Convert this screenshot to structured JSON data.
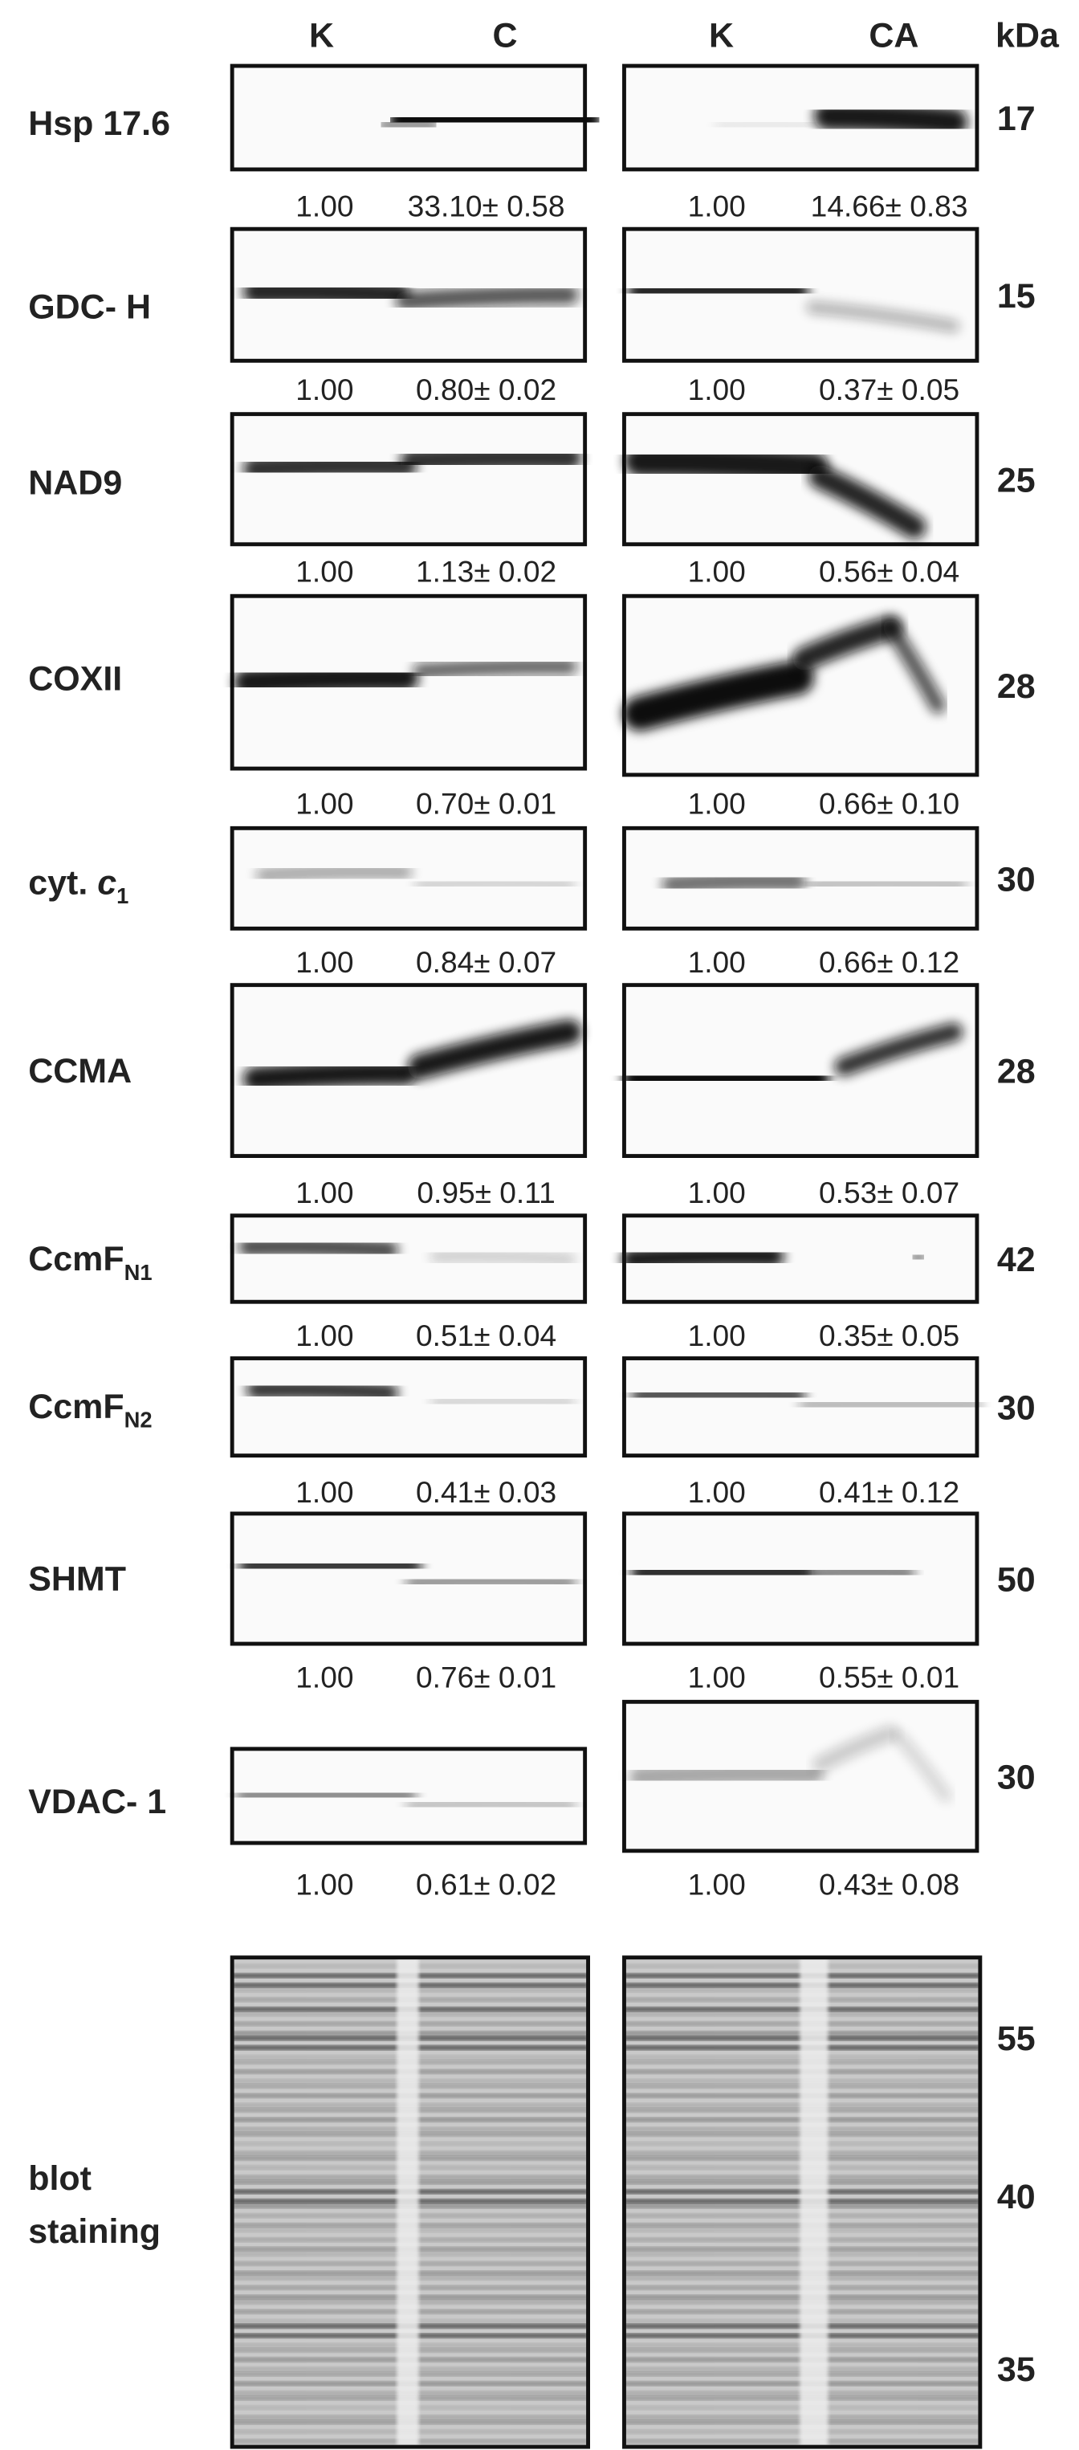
{
  "header": {
    "lanes": [
      "K",
      "C",
      "K",
      "CA"
    ],
    "unit": "kDa"
  },
  "rows": [
    {
      "label": "Hsp 17.6",
      "kda": "17",
      "quant": [
        "1.00",
        "33.10± 0.58",
        "1.00",
        "14.66± 0.83"
      ]
    },
    {
      "label": "GDC- H",
      "kda": "15",
      "quant": [
        "1.00",
        "0.80± 0.02",
        "1.00",
        "0.37± 0.05"
      ]
    },
    {
      "label": "NAD9",
      "kda": "25",
      "quant": [
        "1.00",
        "1.13± 0.02",
        "1.00",
        "0.56± 0.04"
      ]
    },
    {
      "label": "COXII",
      "kda": "28",
      "quant": [
        "1.00",
        "0.70± 0.01",
        "1.00",
        "0.66± 0.10"
      ]
    },
    {
      "label": "cyt. ",
      "label_italic": "c",
      "label_sub": "1",
      "kda": "30",
      "quant": [
        "1.00",
        "0.84± 0.07",
        "1.00",
        "0.66± 0.12"
      ]
    },
    {
      "label": "CCMA",
      "kda": "28",
      "quant": [
        "1.00",
        "0.95± 0.11",
        "1.00",
        "0.53± 0.07"
      ]
    },
    {
      "label": "CcmF",
      "label_sub": "N1",
      "kda": "42",
      "quant": [
        "1.00",
        "0.51± 0.04",
        "1.00",
        "0.35± 0.05"
      ]
    },
    {
      "label": "CcmF",
      "label_sub": "N2",
      "kda": "30",
      "quant": [
        "1.00",
        "0.41± 0.03",
        "1.00",
        "0.41± 0.12"
      ]
    },
    {
      "label": "SHMT",
      "kda": "50",
      "quant": [
        "1.00",
        "0.76± 0.01",
        "1.00",
        "0.55± 0.01"
      ]
    },
    {
      "label": "VDAC- 1",
      "kda": "30",
      "quant": [
        "1.00",
        "0.61± 0.02",
        "1.00",
        "0.43± 0.08"
      ]
    }
  ],
  "staining": {
    "label": [
      "blot",
      "staining"
    ],
    "markers": [
      "55",
      "40",
      "35"
    ]
  }
}
